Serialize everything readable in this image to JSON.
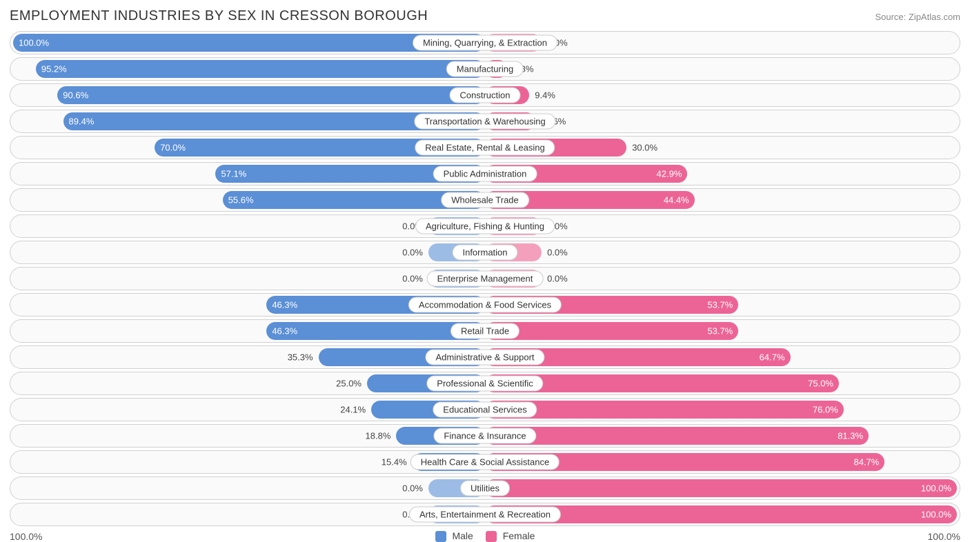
{
  "title": "EMPLOYMENT INDUSTRIES BY SEX IN CRESSON BOROUGH",
  "source": "Source: ZipAtlas.com",
  "chart": {
    "type": "diverging-bar",
    "male_color": "#5b8fd6",
    "female_color": "#ec6495",
    "male_color_light": "#9cbce6",
    "female_color_light": "#f4a0bd",
    "row_bg": "#fafafa",
    "row_border": "#d0d0d0",
    "zero_bar_width_pct": 12,
    "pct_inside_threshold": 40,
    "rows": [
      {
        "label": "Mining, Quarrying, & Extraction",
        "male": 100.0,
        "female": 0.0
      },
      {
        "label": "Manufacturing",
        "male": 95.2,
        "female": 4.8
      },
      {
        "label": "Construction",
        "male": 90.6,
        "female": 9.4
      },
      {
        "label": "Transportation & Warehousing",
        "male": 89.4,
        "female": 10.6
      },
      {
        "label": "Real Estate, Rental & Leasing",
        "male": 70.0,
        "female": 30.0
      },
      {
        "label": "Public Administration",
        "male": 57.1,
        "female": 42.9
      },
      {
        "label": "Wholesale Trade",
        "male": 55.6,
        "female": 44.4
      },
      {
        "label": "Agriculture, Fishing & Hunting",
        "male": 0.0,
        "female": 0.0
      },
      {
        "label": "Information",
        "male": 0.0,
        "female": 0.0
      },
      {
        "label": "Enterprise Management",
        "male": 0.0,
        "female": 0.0
      },
      {
        "label": "Accommodation & Food Services",
        "male": 46.3,
        "female": 53.7
      },
      {
        "label": "Retail Trade",
        "male": 46.3,
        "female": 53.7
      },
      {
        "label": "Administrative & Support",
        "male": 35.3,
        "female": 64.7
      },
      {
        "label": "Professional & Scientific",
        "male": 25.0,
        "female": 75.0
      },
      {
        "label": "Educational Services",
        "male": 24.1,
        "female": 76.0
      },
      {
        "label": "Finance & Insurance",
        "male": 18.8,
        "female": 81.3
      },
      {
        "label": "Health Care & Social Assistance",
        "male": 15.4,
        "female": 84.7
      },
      {
        "label": "Utilities",
        "male": 0.0,
        "female": 100.0
      },
      {
        "label": "Arts, Entertainment & Recreation",
        "male": 0.0,
        "female": 100.0
      }
    ]
  },
  "legend": {
    "male": "Male",
    "female": "Female"
  },
  "axis": {
    "left": "100.0%",
    "right": "100.0%"
  }
}
